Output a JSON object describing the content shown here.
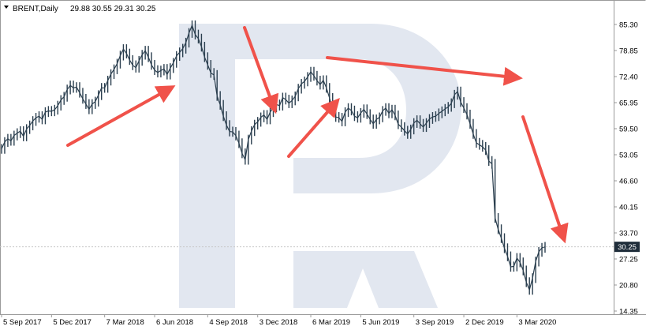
{
  "header": {
    "symbol": "BRENT,Daily",
    "ohlc": "29.88 30.55 29.31 30.25"
  },
  "current_price": "30.25",
  "colors": {
    "candle": "#2b3f4f",
    "arrow": "#f0524a",
    "watermark": "#e2e7f0",
    "grid": "#e9e9e9",
    "badge_bg": "#1f2d3a"
  },
  "watermark_icon": "roboforex-R-logo",
  "chart_data": {
    "type": "line",
    "title": "BRENT,Daily",
    "ylim": [
      14.35,
      88.6
    ],
    "y_ticks": [
      "85.30",
      "78.85",
      "72.40",
      "65.95",
      "59.50",
      "53.05",
      "46.60",
      "40.15",
      "33.70",
      "27.25",
      "20.80",
      "14.35"
    ],
    "x_ticks": [
      "5 Sep 2017",
      "5 Dec 2017",
      "7 Mar 2018",
      "6 Jun 2018",
      "4 Sep 2018",
      "3 Dec 2018",
      "6 Mar 2019",
      "5 Jun 2019",
      "3 Sep 2019",
      "2 Dec 2019",
      "3 Mar 2020"
    ],
    "x_index": [
      0,
      1,
      2,
      3,
      4,
      5,
      6,
      7,
      8,
      9,
      10,
      11,
      12,
      13,
      14,
      15,
      16,
      17,
      18,
      19,
      20,
      21,
      22,
      23,
      24,
      25,
      26,
      27,
      28,
      29,
      30,
      31,
      32,
      33,
      34,
      35,
      36,
      37,
      38,
      39,
      40,
      41,
      42,
      43,
      44,
      45,
      46,
      47,
      48,
      49,
      50,
      51,
      52,
      53,
      54,
      55,
      56,
      57,
      58,
      59,
      60,
      61,
      62,
      63,
      64,
      65,
      66,
      67,
      68,
      69,
      70,
      71,
      72,
      73,
      74,
      75,
      76,
      77,
      78,
      79,
      80,
      81,
      82,
      83,
      84,
      85,
      86,
      87,
      88,
      89,
      90,
      91,
      92,
      93,
      94,
      95,
      96,
      97,
      98,
      99,
      100,
      101,
      102,
      103,
      104,
      105,
      106,
      107,
      108,
      109,
      110,
      111,
      112,
      113,
      114,
      115,
      116,
      117,
      118,
      119,
      120,
      121,
      122,
      123,
      124,
      125,
      126,
      127,
      128,
      129,
      130,
      131,
      132,
      133,
      134,
      135,
      136,
      137,
      138,
      139,
      140,
      141,
      142,
      143,
      144,
      145,
      146,
      147,
      148,
      149,
      150,
      151,
      152,
      153,
      154,
      155,
      156,
      157,
      158,
      159,
      160,
      161,
      162,
      163,
      164,
      165,
      166,
      167,
      168,
      169,
      170,
      171,
      172,
      173,
      174
    ],
    "tick_index": [
      0,
      16,
      33,
      49,
      66,
      82,
      99,
      115,
      132,
      148,
      165
    ],
    "series": [
      {
        "values": [
          54.5,
          56.2,
          57.0,
          56.5,
          57.8,
          58.4,
          58.9,
          57.6,
          59.4,
          60.3,
          61.4,
          62.2,
          62.6,
          61.8,
          63.6,
          63.9,
          63.8,
          64.2,
          65.2,
          66.6,
          67.4,
          69.2,
          70.2,
          69.6,
          69.8,
          68.4,
          66.9,
          65.6,
          64.3,
          65.6,
          66.2,
          67.8,
          69.6,
          69.6,
          71.4,
          73.0,
          74.2,
          75.6,
          77.6,
          79.2,
          78.1,
          76.5,
          75.2,
          74.6,
          76.3,
          77.8,
          78.8,
          77.2,
          75.3,
          74.0,
          73.4,
          73.9,
          74.3,
          72.9,
          74.5,
          75.8,
          77.5,
          78.4,
          79.3,
          80.8,
          83.2,
          85.1,
          82.8,
          81.8,
          79.8,
          77.2,
          75.3,
          73.3,
          72.8,
          67.6,
          65.4,
          62.6,
          60.4,
          58.8,
          58.7,
          57.8,
          55.9,
          53.4,
          51.8,
          56.8,
          58.9,
          60.5,
          61.2,
          62.3,
          62.9,
          61.8,
          63.6,
          64.8,
          65.5,
          65.2,
          67.2,
          66.7,
          65.8,
          66.5,
          67.5,
          69.4,
          70.6,
          71.2,
          72.3,
          73.6,
          72.6,
          71.4,
          70.4,
          71.5,
          69.6,
          67.1,
          64.2,
          62.4,
          62.2,
          61.3,
          63.6,
          64.6,
          64.0,
          62.6,
          62.2,
          63.4,
          64.3,
          63.1,
          61.8,
          60.7,
          61.8,
          62.3,
          63.9,
          64.6,
          63.3,
          64.2,
          62.8,
          60.6,
          59.9,
          59.0,
          58.2,
          59.3,
          60.9,
          61.6,
          60.7,
          59.9,
          60.9,
          61.9,
          62.4,
          62.6,
          63.3,
          63.8,
          64.4,
          64.9,
          65.8,
          67.9,
          68.7,
          66.1,
          64.6,
          63.0,
          60.7,
          58.2,
          56.0,
          55.5,
          55.0,
          54.2,
          51.5,
          50.8,
          37.4,
          34.6,
          32.4,
          29.9,
          27.9,
          25.3,
          25.4,
          27.5,
          26.4,
          24.4,
          21.5,
          19.6,
          22.5,
          26.6,
          29.0,
          30.0,
          30.25
        ]
      }
    ],
    "xlabel": "",
    "ylabel": "",
    "grid": false,
    "legend": "none"
  },
  "annotations": [
    {
      "name": "trend-arrow-up-1",
      "kind": "arrow",
      "direction": "up"
    },
    {
      "name": "trend-arrow-down-1",
      "kind": "arrow",
      "direction": "down"
    },
    {
      "name": "trend-arrow-up-2",
      "kind": "arrow",
      "direction": "up"
    },
    {
      "name": "trend-arrow-down-2",
      "kind": "arrow",
      "direction": "down"
    },
    {
      "name": "trend-arrow-down-3",
      "kind": "arrow",
      "direction": "down"
    }
  ]
}
